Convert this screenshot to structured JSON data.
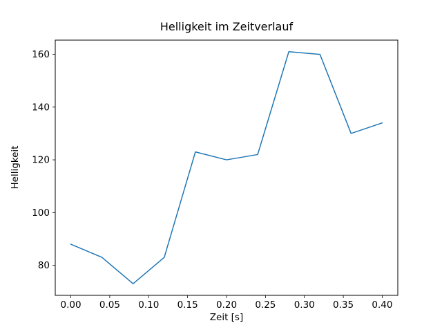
{
  "chart_data": {
    "type": "line",
    "title": "Helligkeit im Zeitverlauf",
    "xlabel": "Zeit [s]",
    "ylabel": "Helligkeit",
    "x": [
      0.0,
      0.04,
      0.08,
      0.12,
      0.16,
      0.2,
      0.24,
      0.28,
      0.32,
      0.36,
      0.4
    ],
    "y": [
      88,
      83,
      73,
      83,
      123,
      120,
      122,
      161,
      160,
      130,
      134
    ],
    "xticks": [
      0.0,
      0.05,
      0.1,
      0.15,
      0.2,
      0.25,
      0.3,
      0.35,
      0.4
    ],
    "xtick_labels": [
      "0.00",
      "0.05",
      "0.10",
      "0.15",
      "0.20",
      "0.25",
      "0.30",
      "0.35",
      "0.40"
    ],
    "yticks": [
      80,
      100,
      120,
      140,
      160
    ],
    "ytick_labels": [
      "80",
      "100",
      "120",
      "140",
      "160"
    ],
    "xlim": [
      -0.02,
      0.42
    ],
    "ylim": [
      68.6,
      165.4
    ],
    "line_color": "#1f77b4",
    "axis_color": "#000000",
    "background_color": "#ffffff",
    "grid": false,
    "legend_position": "none"
  }
}
